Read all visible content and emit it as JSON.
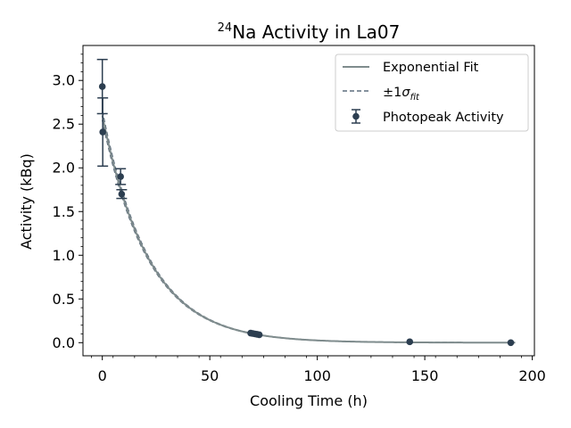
{
  "chart_data": {
    "type": "scatter",
    "title": {
      "superscript": "24",
      "text": "Na Activity in La07"
    },
    "xlabel": "Cooling Time (h)",
    "ylabel": "Activity (kBq)",
    "xlim": [
      -9,
      201
    ],
    "ylim": [
      -0.15,
      3.4
    ],
    "xticks": [
      0,
      50,
      100,
      150,
      200
    ],
    "yticks": [
      0.0,
      0.5,
      1.0,
      1.5,
      2.0,
      2.5,
      3.0
    ],
    "xtick_labels": [
      "0",
      "50",
      "100",
      "150",
      "200"
    ],
    "ytick_labels": [
      "0.0",
      "0.5",
      "1.0",
      "1.5",
      "2.0",
      "2.5",
      "3.0"
    ],
    "grid": false,
    "legend_position": "top-right",
    "legend": {
      "fit": "Exponential Fit",
      "band_prefix": "±1",
      "band_sigma": "σ",
      "band_subscript": "fit",
      "points": "Photopeak Activity"
    },
    "fit": {
      "model": "exponential",
      "A0": 2.6,
      "half_life_h": 15.0,
      "sigma_frac": 0.02,
      "x_range": [
        0,
        192
      ]
    },
    "series": [
      {
        "name": "Photopeak Activity",
        "x": [
          0.0,
          0.2,
          8.5,
          9.0,
          69.0,
          70.0,
          71.0,
          72.0,
          73.0,
          143.0,
          190.0
        ],
        "y": [
          2.93,
          2.41,
          1.9,
          1.7,
          0.11,
          0.105,
          0.1,
          0.095,
          0.09,
          0.01,
          0.0
        ],
        "yerr": [
          0.31,
          0.39,
          0.09,
          0.05,
          0.01,
          0.01,
          0.01,
          0.01,
          0.01,
          0.005,
          0.003
        ]
      }
    ],
    "colors": {
      "points": "#2c3e50",
      "fit": "#7f8c8d",
      "band": "#5d6d7e"
    }
  }
}
